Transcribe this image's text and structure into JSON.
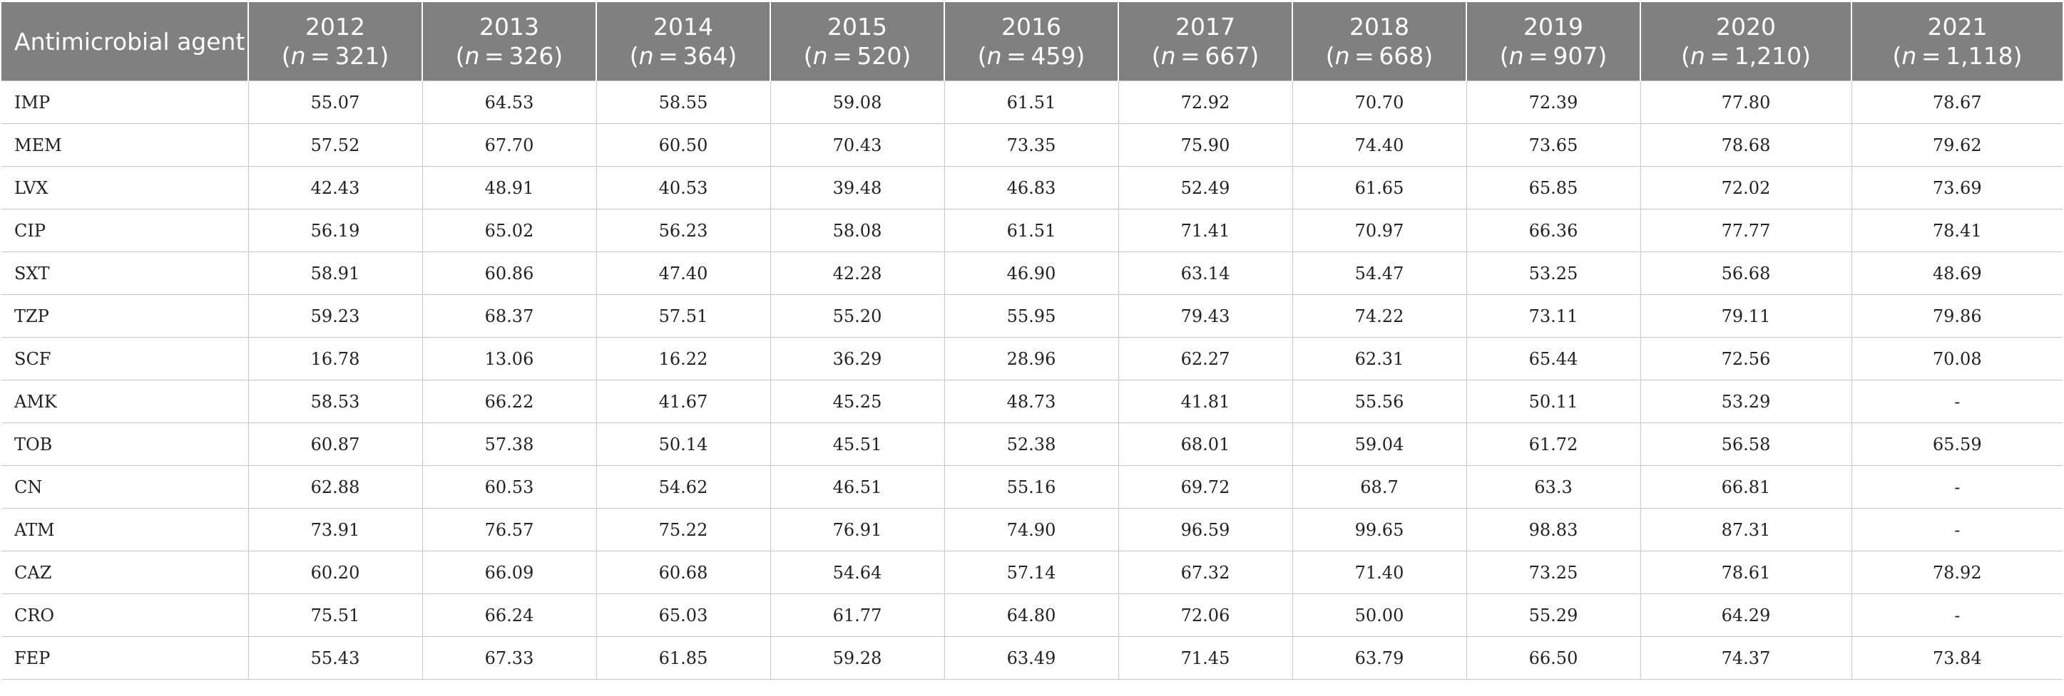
{
  "table": {
    "header_first": "Antimicrobial agent",
    "n_label": "n",
    "years": [
      {
        "year": "2012",
        "n": "321"
      },
      {
        "year": "2013",
        "n": "326"
      },
      {
        "year": "2014",
        "n": "364"
      },
      {
        "year": "2015",
        "n": "520"
      },
      {
        "year": "2016",
        "n": "459"
      },
      {
        "year": "2017",
        "n": "667"
      },
      {
        "year": "2018",
        "n": "668"
      },
      {
        "year": "2019",
        "n": "907"
      },
      {
        "year": "2020",
        "n": "1,210"
      },
      {
        "year": "2021",
        "n": "1,118"
      }
    ],
    "rows": [
      {
        "agent": "IMP",
        "values": [
          "55.07",
          "64.53",
          "58.55",
          "59.08",
          "61.51",
          "72.92",
          "70.70",
          "72.39",
          "77.80",
          "78.67"
        ]
      },
      {
        "agent": "MEM",
        "values": [
          "57.52",
          "67.70",
          "60.50",
          "70.43",
          "73.35",
          "75.90",
          "74.40",
          "73.65",
          "78.68",
          "79.62"
        ]
      },
      {
        "agent": "LVX",
        "values": [
          "42.43",
          "48.91",
          "40.53",
          "39.48",
          "46.83",
          "52.49",
          "61.65",
          "65.85",
          "72.02",
          "73.69"
        ]
      },
      {
        "agent": "CIP",
        "values": [
          "56.19",
          "65.02",
          "56.23",
          "58.08",
          "61.51",
          "71.41",
          "70.97",
          "66.36",
          "77.77",
          "78.41"
        ]
      },
      {
        "agent": "SXT",
        "values": [
          "58.91",
          "60.86",
          "47.40",
          "42.28",
          "46.90",
          "63.14",
          "54.47",
          "53.25",
          "56.68",
          "48.69"
        ]
      },
      {
        "agent": "TZP",
        "values": [
          "59.23",
          "68.37",
          "57.51",
          "55.20",
          "55.95",
          "79.43",
          "74.22",
          "73.11",
          "79.11",
          "79.86"
        ]
      },
      {
        "agent": "SCF",
        "values": [
          "16.78",
          "13.06",
          "16.22",
          "36.29",
          "28.96",
          "62.27",
          "62.31",
          "65.44",
          "72.56",
          "70.08"
        ]
      },
      {
        "agent": "AMK",
        "values": [
          "58.53",
          "66.22",
          "41.67",
          "45.25",
          "48.73",
          "41.81",
          "55.56",
          "50.11",
          "53.29",
          "-"
        ]
      },
      {
        "agent": "TOB",
        "values": [
          "60.87",
          "57.38",
          "50.14",
          "45.51",
          "52.38",
          "68.01",
          "59.04",
          "61.72",
          "56.58",
          "65.59"
        ]
      },
      {
        "agent": "CN",
        "values": [
          "62.88",
          "60.53",
          "54.62",
          "46.51",
          "55.16",
          "69.72",
          "68.7",
          "63.3",
          "66.81",
          "-"
        ]
      },
      {
        "agent": "ATM",
        "values": [
          "73.91",
          "76.57",
          "75.22",
          "76.91",
          "74.90",
          "96.59",
          "99.65",
          "98.83",
          "87.31",
          "-"
        ]
      },
      {
        "agent": "CAZ",
        "values": [
          "60.20",
          "66.09",
          "60.68",
          "54.64",
          "57.14",
          "67.32",
          "71.40",
          "73.25",
          "78.61",
          "78.92"
        ]
      },
      {
        "agent": "CRO",
        "values": [
          "75.51",
          "66.24",
          "65.03",
          "61.77",
          "64.80",
          "72.06",
          "50.00",
          "55.29",
          "64.29",
          "-"
        ]
      },
      {
        "agent": "FEP",
        "values": [
          "55.43",
          "67.33",
          "61.85",
          "59.28",
          "63.49",
          "71.45",
          "63.79",
          "66.50",
          "74.37",
          "73.84"
        ]
      }
    ]
  }
}
